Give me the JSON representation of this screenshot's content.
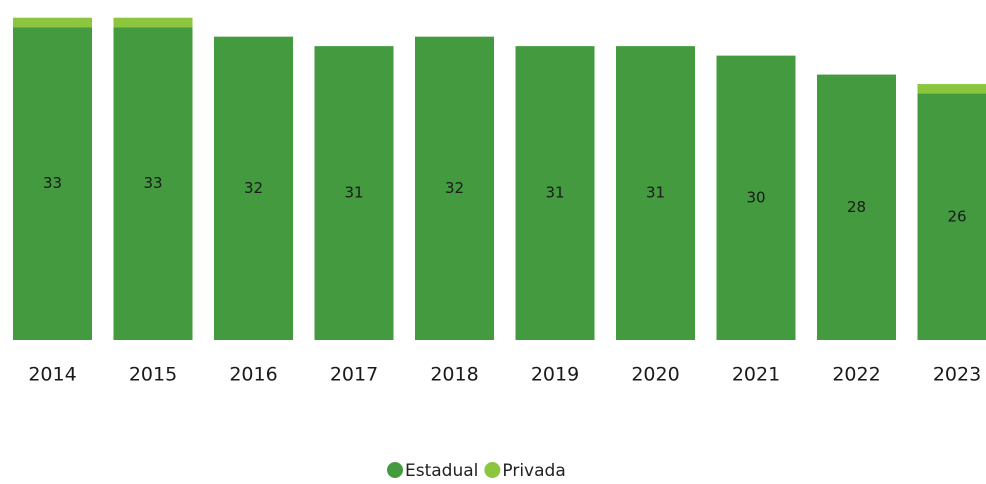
{
  "chart_data": {
    "type": "stacked_bar",
    "categories": [
      "2014",
      "2015",
      "2016",
      "2017",
      "2018",
      "2019",
      "2020",
      "2021",
      "2022",
      "2023"
    ],
    "series": [
      {
        "name": "Estadual",
        "color": "#439a3f",
        "values": [
          33,
          33,
          32,
          31,
          32,
          31,
          31,
          30,
          28,
          26
        ]
      },
      {
        "name": "Privada",
        "color": "#8cc63e",
        "values": [
          1,
          1,
          0,
          0,
          0,
          0,
          0,
          0,
          0,
          1
        ]
      }
    ],
    "ylim": [
      0,
      34
    ]
  }
}
